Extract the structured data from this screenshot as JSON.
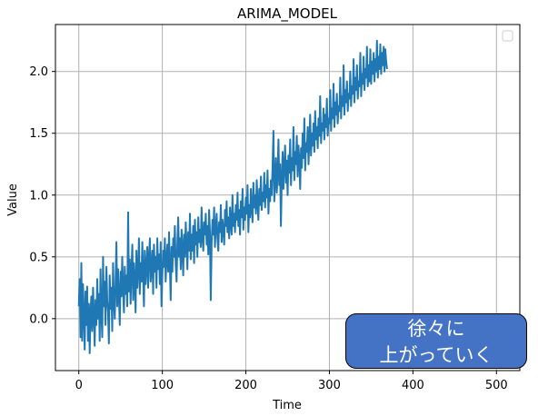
{
  "chart_data": {
    "type": "line",
    "title": "ARIMA_MODEL",
    "xlabel": "Time",
    "ylabel": "Value",
    "xlim": [
      -28,
      528
    ],
    "ylim": [
      -0.42,
      2.38
    ],
    "xticks": [
      0,
      100,
      200,
      300,
      400,
      500
    ],
    "xtick_labels": [
      "0",
      "100",
      "200",
      "300",
      "400",
      "500"
    ],
    "yticks": [
      0.0,
      0.5,
      1.0,
      1.5,
      2.0
    ],
    "ytick_labels": [
      "0.0",
      "0.5",
      "1.0",
      "1.5",
      "2.0"
    ],
    "grid": true,
    "legend": "top-right (empty)",
    "line_color": "#1f77b4",
    "series": [
      {
        "x_start": 0,
        "x_step": 1,
        "values": [
          0.1,
          0.32,
          -0.15,
          0.45,
          -0.18,
          0.28,
          0.05,
          -0.25,
          0.22,
          -0.05,
          0.26,
          -0.18,
          0.12,
          -0.28,
          0.05,
          0.18,
          -0.1,
          0.25,
          0.02,
          -0.22,
          0.15,
          -0.05,
          0.32,
          0.0,
          0.2,
          -0.18,
          0.4,
          0.05,
          -0.15,
          0.5,
          0.1,
          0.3,
          -0.05,
          0.42,
          0.15,
          0.05,
          -0.2,
          0.35,
          0.08,
          0.25,
          -0.1,
          0.45,
          0.15,
          0.0,
          0.3,
          0.62,
          0.1,
          0.4,
          0.2,
          -0.05,
          0.38,
          0.18,
          0.5,
          0.25,
          0.05,
          0.42,
          0.2,
          0.35,
          0.1,
          0.86,
          0.22,
          0.48,
          0.12,
          0.38,
          0.6,
          0.15,
          0.45,
          0.3,
          0.05,
          0.55,
          0.25,
          0.4,
          0.65,
          0.2,
          0.45,
          0.3,
          0.62,
          0.35,
          0.1,
          0.55,
          0.28,
          0.42,
          0.58,
          0.25,
          0.48,
          0.65,
          0.3,
          0.42,
          0.55,
          0.2,
          0.6,
          0.38,
          0.5,
          0.25,
          0.65,
          0.4,
          0.52,
          0.28,
          0.62,
          0.1,
          0.35,
          0.55,
          0.42,
          0.65,
          0.3,
          0.48,
          0.6,
          0.38,
          0.7,
          0.45,
          0.15,
          0.58,
          0.38,
          0.65,
          0.5,
          0.75,
          0.45,
          0.3,
          0.62,
          0.82,
          0.5,
          0.65,
          0.4,
          0.72,
          0.55,
          0.35,
          0.68,
          0.5,
          0.78,
          0.6,
          0.4,
          0.7,
          0.55,
          0.85,
          0.48,
          0.68,
          0.55,
          0.75,
          0.45,
          0.8,
          0.6,
          0.7,
          0.5,
          0.82,
          0.62,
          0.72,
          0.58,
          0.9,
          0.65,
          0.55,
          0.78,
          0.68,
          0.85,
          0.6,
          0.75,
          0.52,
          0.88,
          0.7,
          0.15,
          0.62,
          0.8,
          0.68,
          0.9,
          0.58,
          0.75,
          0.85,
          0.65,
          0.55,
          0.78,
          0.7,
          0.92,
          0.62,
          0.8,
          0.72,
          0.6,
          0.88,
          0.75,
          0.95,
          0.7,
          0.82,
          0.65,
          0.9,
          0.78,
          0.68,
          1.0,
          0.75,
          0.85,
          0.7,
          0.92,
          0.8,
          1.02,
          0.75,
          0.88,
          0.68,
          0.95,
          0.82,
          1.05,
          0.72,
          0.9,
          0.8,
          0.98,
          0.85,
          1.08,
          0.7,
          0.92,
          0.82,
          1.05,
          0.88,
          0.78,
          1.1,
          0.9,
          1.0,
          0.85,
          1.12,
          0.95,
          0.8,
          1.05,
          0.92,
          1.15,
          0.88,
          1.02,
          0.95,
          1.18,
          0.9,
          1.08,
          0.98,
          1.2,
          0.85,
          1.05,
          0.95,
          1.12,
          1.0,
          1.25,
          1.52,
          0.95,
          1.1,
          1.3,
          1.02,
          1.18,
          1.45,
          1.08,
          1.25,
          0.75,
          1.15,
          1.35,
          1.05,
          1.22,
          1.4,
          1.1,
          1.28,
          1.0,
          1.32,
          1.18,
          1.45,
          1.08,
          1.3,
          1.2,
          1.55,
          1.12,
          1.35,
          1.25,
          1.48,
          1.15,
          1.4,
          1.28,
          1.05,
          1.38,
          1.22,
          1.5,
          1.3,
          1.62,
          1.2,
          1.42,
          1.35,
          1.55,
          1.25,
          1.45,
          1.65,
          1.32,
          1.5,
          1.4,
          1.58,
          1.35,
          1.68,
          1.45,
          1.55,
          1.38,
          1.62,
          1.48,
          1.8,
          1.42,
          1.58,
          1.52,
          1.7,
          1.45,
          1.65,
          1.55,
          1.78,
          1.48,
          1.62,
          1.58,
          1.85,
          1.52,
          1.7,
          1.62,
          1.9,
          1.55,
          1.75,
          1.65,
          1.82,
          1.58,
          1.72,
          1.68,
          1.95,
          1.62,
          1.8,
          1.72,
          2.05,
          1.65,
          1.85,
          1.75,
          1.92,
          1.68,
          1.82,
          1.78,
          2.0,
          1.72,
          1.88,
          1.82,
          2.1,
          1.75,
          1.95,
          1.85,
          2.05,
          1.78,
          1.92,
          1.88,
          2.15,
          1.8,
          1.98,
          1.9,
          2.12,
          1.85,
          2.02,
          1.95,
          2.2,
          1.88,
          2.05,
          1.92,
          2.18,
          1.9,
          2.08,
          1.98,
          2.15,
          1.92,
          2.1,
          2.0,
          2.25,
          1.95,
          2.12,
          2.02,
          2.22,
          1.98,
          2.15,
          2.05,
          2.2,
          2.0,
          2.18,
          2.08,
          2.02
        ]
      }
    ]
  },
  "callout": {
    "line1": "徐々に",
    "line2": "上がっていく"
  }
}
